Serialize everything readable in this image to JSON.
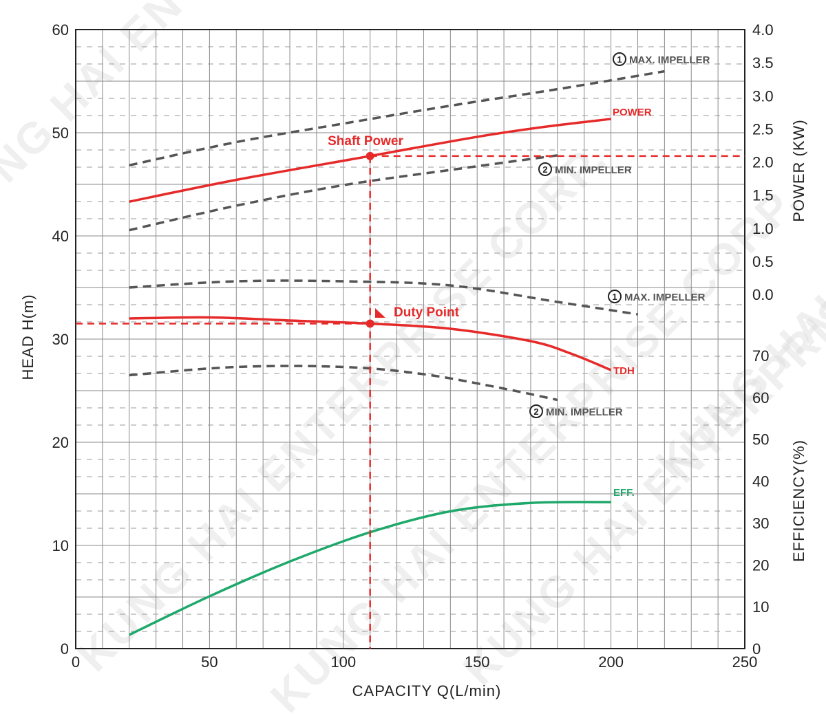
{
  "chart_data": {
    "type": "line",
    "title": "",
    "watermark": "KUNG HAI ENTERPRISE CORP.",
    "x_axis": {
      "label": "CAPACITY Q(L/min)",
      "range": [
        0,
        250
      ],
      "ticks": [
        "0",
        "50",
        "100",
        "150",
        "200",
        "250"
      ],
      "tick_values": [
        0,
        50,
        100,
        150,
        200,
        250
      ]
    },
    "y_left": {
      "label": "HEAD H(m)",
      "range": [
        0,
        60
      ],
      "ticks": [
        "0",
        "10",
        "20",
        "30",
        "40",
        "50",
        "60"
      ],
      "tick_values": [
        0,
        10,
        20,
        30,
        40,
        50,
        60
      ]
    },
    "y_power": {
      "label": "POWER (KW)",
      "range": [
        0,
        4
      ],
      "ticks": [
        "0.0",
        "0.5",
        "1.0",
        "1.5",
        "2.0",
        "2.5",
        "3.0",
        "3.5",
        "4.0"
      ],
      "tick_values": [
        0,
        0.5,
        1.0,
        1.5,
        2.0,
        2.5,
        3.0,
        3.5,
        4.0
      ]
    },
    "y_efficiency": {
      "label": "EFFICIENCY(%)",
      "range": [
        0,
        70
      ],
      "ticks": [
        "0",
        "10",
        "20",
        "30",
        "40",
        "50",
        "60",
        "70"
      ],
      "tick_values": [
        0,
        10,
        20,
        30,
        40,
        50,
        60,
        70
      ]
    },
    "grid": true,
    "series": [
      {
        "name": "MAX. IMPELLER",
        "marker": "1",
        "group": "power",
        "axis": "power",
        "style": "dashed",
        "color": "#555555",
        "points": [
          [
            20,
            1.95
          ],
          [
            60,
            2.3
          ],
          [
            100,
            2.58
          ],
          [
            140,
            2.85
          ],
          [
            180,
            3.1
          ],
          [
            220,
            3.37
          ]
        ]
      },
      {
        "name": "POWER",
        "group": "power",
        "axis": "power",
        "style": "solid",
        "color": "#e62a2a",
        "points": [
          [
            20,
            1.4
          ],
          [
            60,
            1.73
          ],
          [
            110,
            2.09
          ],
          [
            150,
            2.38
          ],
          [
            175,
            2.53
          ],
          [
            200,
            2.65
          ]
        ]
      },
      {
        "name": "MIN. IMPELLER",
        "marker": "2",
        "group": "power",
        "axis": "power",
        "style": "dashed",
        "color": "#555555",
        "points": [
          [
            20,
            0.97
          ],
          [
            60,
            1.34
          ],
          [
            100,
            1.65
          ],
          [
            140,
            1.88
          ],
          [
            180,
            2.1
          ]
        ]
      },
      {
        "name": "MAX. IMPELLER",
        "marker": "1",
        "group": "head",
        "axis": "head",
        "style": "dashed",
        "color": "#555555",
        "points": [
          [
            20,
            35.0
          ],
          [
            60,
            35.6
          ],
          [
            100,
            35.6
          ],
          [
            140,
            35.2
          ],
          [
            180,
            33.6
          ],
          [
            210,
            32.4
          ]
        ]
      },
      {
        "name": "TDH",
        "group": "head",
        "axis": "head",
        "style": "solid",
        "color": "#e62a2a",
        "points": [
          [
            20,
            32.0
          ],
          [
            50,
            32.1
          ],
          [
            80,
            31.8
          ],
          [
            110,
            31.5
          ],
          [
            140,
            31.0
          ],
          [
            170,
            29.8
          ],
          [
            185,
            28.6
          ],
          [
            200,
            27.0
          ]
        ]
      },
      {
        "name": "MIN. IMPELLER",
        "marker": "2",
        "group": "head",
        "axis": "head",
        "style": "dashed",
        "color": "#555555",
        "points": [
          [
            20,
            26.5
          ],
          [
            60,
            27.3
          ],
          [
            100,
            27.3
          ],
          [
            130,
            26.6
          ],
          [
            160,
            25.2
          ],
          [
            180,
            24.1
          ]
        ]
      },
      {
        "name": "EFF.",
        "axis": "efficiency",
        "style": "solid",
        "color": "#1ea86a",
        "points": [
          [
            20,
            3.3
          ],
          [
            50,
            12.5
          ],
          [
            80,
            20.8
          ],
          [
            110,
            27.8
          ],
          [
            140,
            32.8
          ],
          [
            170,
            34.8
          ],
          [
            200,
            35.0
          ]
        ]
      }
    ],
    "annotations": {
      "shaft_power": {
        "label": "Shaft Power",
        "x": 110,
        "power": 2.09,
        "color": "#e62a2a"
      },
      "duty_point": {
        "label": "Duty Point",
        "x": 110,
        "head": 31.5,
        "color": "#e62a2a"
      }
    }
  }
}
